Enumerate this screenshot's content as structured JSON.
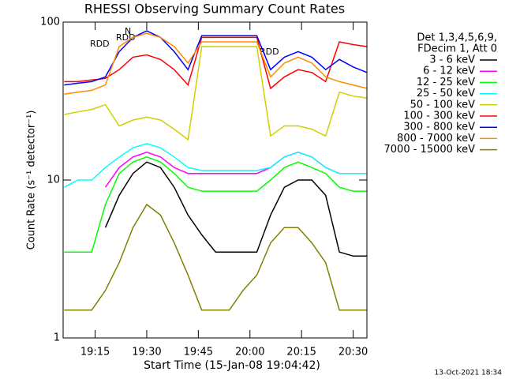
{
  "chart_data": {
    "type": "line",
    "title": "RHESSI Observing Summary Count Rates",
    "x_label": "Start Time (15-Jan-08 19:04:42)",
    "y_label": "Count Rate (s⁻¹ detector⁻¹)",
    "legend_header": [
      "Det 1,3,4,5,6,9,",
      "FDecim 1, Att 0"
    ],
    "footer": "13-Oct-2021 18:34",
    "annotations": [
      "RDD",
      "RDD",
      "N",
      "RDD"
    ],
    "log_y": true,
    "xlim": [
      1145.7,
      1234
    ],
    "xticks": [
      {
        "value": 1155,
        "label": "19:15"
      },
      {
        "value": 1170,
        "label": "19:30"
      },
      {
        "value": 1185,
        "label": "19:45"
      },
      {
        "value": 1200,
        "label": "20:00"
      },
      {
        "value": 1215,
        "label": "20:15"
      },
      {
        "value": 1230,
        "label": "20:30"
      }
    ],
    "ylim": [
      1,
      100
    ],
    "yticks": [
      1,
      10,
      100
    ],
    "x": [
      1146,
      1150,
      1154,
      1158,
      1162,
      1166,
      1170,
      1174,
      1178,
      1182,
      1186,
      1190,
      1194,
      1198,
      1202,
      1206,
      1210,
      1214,
      1218,
      1222,
      1226,
      1230,
      1234
    ],
    "series": [
      {
        "name": "3 - 6 keV",
        "color": "#000000",
        "values": [
          null,
          null,
          null,
          5,
          8,
          11,
          13,
          12,
          9,
          6,
          4.5,
          3.5,
          3.5,
          3.5,
          3.5,
          6,
          9,
          10,
          10,
          8,
          3.5,
          3.3,
          3.3
        ]
      },
      {
        "name": "6 - 12 keV",
        "color": "#ff00ff",
        "values": [
          null,
          null,
          null,
          9,
          12,
          14,
          15,
          14,
          12,
          11,
          11,
          11,
          11,
          11,
          11,
          12,
          14,
          15,
          14,
          12,
          11,
          11,
          11
        ]
      },
      {
        "name": "12 - 25 keV",
        "color": "#00ff00",
        "values": [
          3.5,
          3.5,
          3.5,
          7,
          11,
          13,
          14,
          13,
          11,
          9,
          8.5,
          8.5,
          8.5,
          8.5,
          8.5,
          10,
          12,
          13,
          12,
          11,
          9,
          8.5,
          8.5
        ]
      },
      {
        "name": "25 - 50 keV",
        "color": "#00ffff",
        "values": [
          9,
          10,
          10,
          12,
          14,
          16,
          17,
          16,
          14,
          12,
          11.5,
          11.5,
          11.5,
          11.5,
          11.5,
          12,
          14,
          15,
          14,
          12,
          11,
          11,
          11
        ]
      },
      {
        "name": "50 - 100 keV",
        "color": "#d0d000",
        "values": [
          26,
          27,
          28,
          30,
          22,
          24,
          25,
          24,
          21,
          18,
          70,
          70,
          70,
          70,
          70,
          19,
          22,
          22,
          21,
          19,
          36,
          34,
          33
        ]
      },
      {
        "name": "100 - 300 keV",
        "color": "#ff0000",
        "values": [
          42,
          42,
          43,
          44,
          50,
          60,
          62,
          58,
          50,
          40,
          80,
          80,
          80,
          80,
          80,
          38,
          45,
          50,
          48,
          42,
          75,
          72,
          70
        ]
      },
      {
        "name": "300 - 800 keV",
        "color": "#0000ff",
        "values": [
          40,
          41,
          42,
          45,
          65,
          80,
          88,
          80,
          65,
          50,
          82,
          82,
          82,
          82,
          82,
          50,
          60,
          65,
          60,
          50,
          58,
          52,
          48
        ]
      },
      {
        "name": "800 - 7000 keV",
        "color": "#ff8c00",
        "values": [
          35,
          36,
          37,
          40,
          70,
          80,
          85,
          80,
          70,
          55,
          75,
          75,
          75,
          75,
          75,
          45,
          55,
          60,
          55,
          45,
          42,
          40,
          38
        ]
      },
      {
        "name": "7000 - 15000 keV",
        "color": "#808000",
        "values": [
          1.5,
          1.5,
          1.5,
          2,
          3,
          5,
          7,
          6,
          4,
          2.5,
          1.5,
          1.5,
          1.5,
          2,
          2.5,
          4,
          5,
          5,
          4,
          3,
          1.5,
          1.5,
          1.5
        ]
      }
    ]
  }
}
